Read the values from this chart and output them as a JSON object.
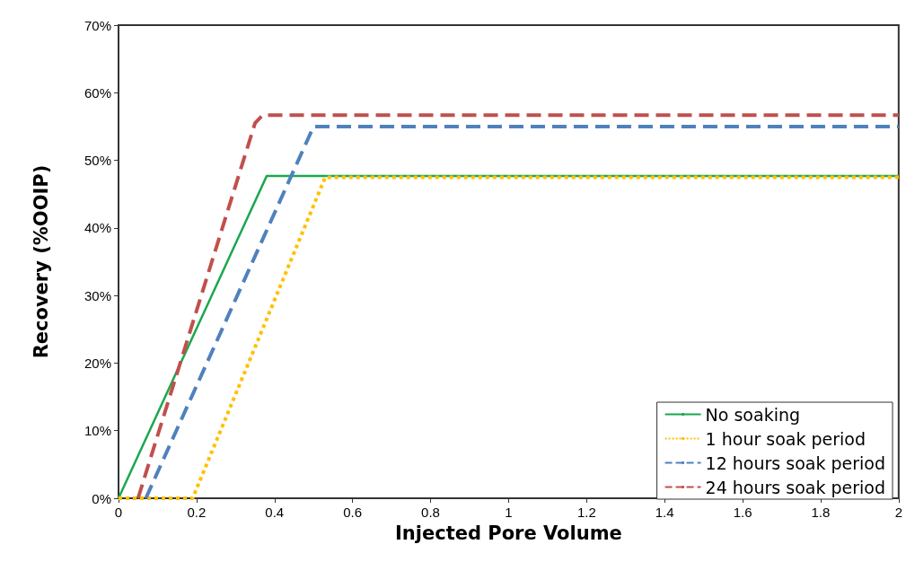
{
  "chart_data": {
    "type": "line",
    "xlabel": "Injected Pore Volume",
    "ylabel": "Recovery (%OOIP)",
    "xlim": [
      0,
      2
    ],
    "xticks": [
      0,
      0.2,
      0.4,
      0.6,
      0.8,
      1,
      1.2,
      1.4,
      1.6,
      1.8,
      2
    ],
    "ylim": [
      0,
      70
    ],
    "yticks": [
      {
        "value": 0,
        "label": "0%"
      },
      {
        "value": 10,
        "label": "10%"
      },
      {
        "value": 20,
        "label": "20%"
      },
      {
        "value": 30,
        "label": "30%"
      },
      {
        "value": 40,
        "label": "40%"
      },
      {
        "value": 50,
        "label": "50%"
      },
      {
        "value": 60,
        "label": "60%"
      },
      {
        "value": 70,
        "label": "70%"
      }
    ],
    "grid": false,
    "legend": "bottom right",
    "marker": "none",
    "series": [
      {
        "name": "No soaking",
        "color": "#1aa84f",
        "line_style": "solid",
        "x": [
          0,
          0.38,
          2
        ],
        "values": [
          0,
          47.7,
          47.7
        ]
      },
      {
        "name": "1 hour soak period",
        "color": "#ffc000",
        "line_style": "dotted",
        "x": [
          0,
          0.19,
          0.53,
          2
        ],
        "values": [
          0,
          0,
          47.5,
          47.5
        ]
      },
      {
        "name": "12 hours soak period",
        "color": "#4f81bd",
        "line_style": "dashed",
        "x": [
          0.07,
          0.5,
          2
        ],
        "values": [
          0,
          55,
          55
        ]
      },
      {
        "name": "24 hours soak period",
        "color": "#c0504d",
        "line_style": "dashed",
        "x": [
          0.05,
          0.35,
          0.37,
          2
        ],
        "values": [
          0,
          55.5,
          56.7,
          56.7
        ]
      }
    ]
  }
}
